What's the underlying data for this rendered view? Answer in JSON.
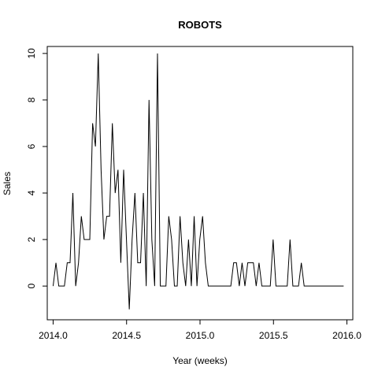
{
  "chart_data": {
    "type": "line",
    "title": "ROBOTS",
    "xlabel": "Year (weeks)",
    "ylabel": "Sales",
    "xlim": [
      2013.96,
      2016.04
    ],
    "ylim": [
      -1.45,
      10.3
    ],
    "x_ticks": [
      2014.0,
      2014.5,
      2015.0,
      2015.5,
      2016.0
    ],
    "x_tick_labels": [
      "2014.0",
      "2014.5",
      "2015.0",
      "2015.5",
      "2016.0"
    ],
    "y_ticks": [
      0,
      2,
      4,
      6,
      8,
      10
    ],
    "y_tick_labels": [
      "0",
      "2",
      "4",
      "6",
      "8",
      "10"
    ],
    "grid": false,
    "line_color": "#000000",
    "series": [
      {
        "x_start": 2014.0,
        "x_step": 0.0192,
        "values": [
          0,
          1,
          0,
          0,
          0,
          1,
          1,
          4,
          0,
          1,
          3,
          2,
          2,
          2,
          7,
          6,
          10,
          5,
          2,
          3,
          3,
          7,
          4,
          5,
          1,
          5,
          2,
          -1,
          2,
          4,
          1,
          1,
          4,
          0,
          8,
          2,
          0,
          10,
          0,
          0,
          0,
          3,
          2,
          0,
          0,
          3,
          1,
          0,
          2,
          0,
          3,
          0,
          2,
          3,
          1,
          0,
          0,
          0,
          0,
          0,
          0,
          0,
          0,
          0,
          1,
          1,
          0,
          1,
          0,
          1,
          1,
          1,
          0,
          1,
          0,
          0,
          0,
          0,
          2,
          0,
          0,
          0,
          0,
          0,
          2,
          0,
          0,
          0,
          1,
          0,
          0,
          0,
          0,
          0,
          0,
          0,
          0,
          0,
          0,
          0,
          0,
          0,
          0,
          0
        ]
      }
    ]
  }
}
